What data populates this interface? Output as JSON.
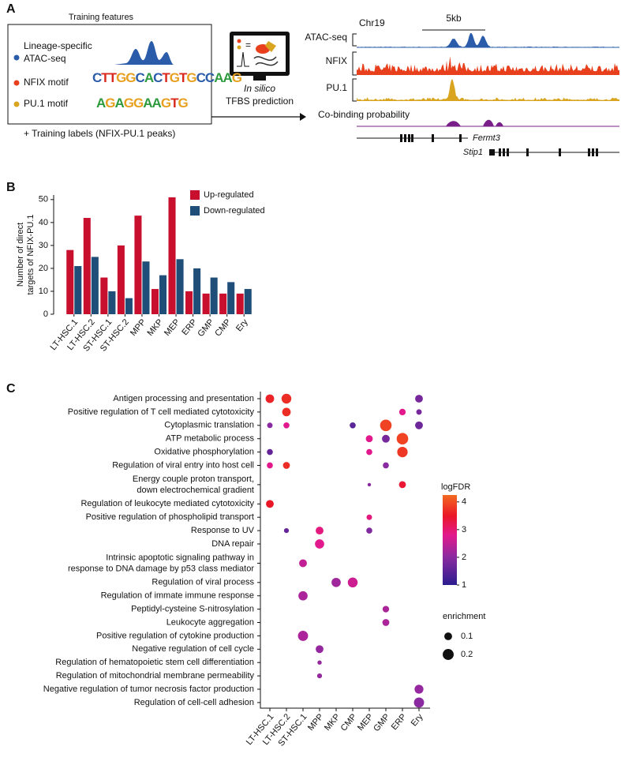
{
  "panel_labels": [
    "A",
    "B",
    "C"
  ],
  "panel_a": {
    "box_title": "Training features",
    "features": [
      {
        "label": [
          "Lineage-specific",
          "ATAC-seq"
        ],
        "color": "#2a5caa"
      },
      {
        "label": [
          "NFIX motif"
        ],
        "color": "#e8401c"
      },
      {
        "label": [
          "PU.1 motif"
        ],
        "color": "#d9a520"
      }
    ],
    "motifs": [
      "CTTGGCACTGTGCCAAG",
      "AGAGGAAGTG"
    ],
    "training_labels": "+ Training labels (NFIX-PU.1 peaks)",
    "prediction": [
      "In silico",
      "TFBS prediction"
    ],
    "chromosome": "Chr19",
    "scale": "5kb",
    "tracks": [
      {
        "name": "ATAC-seq",
        "color": "#2a5caa"
      },
      {
        "name": "NFIX",
        "color": "#e8401c"
      },
      {
        "name": "PU.1",
        "color": "#d9a520"
      }
    ],
    "cobinding": "Co-binding probability",
    "genes": [
      "Fermt3",
      "Stip1"
    ]
  },
  "chart_data": [
    {
      "type": "bar",
      "ylabel": [
        "Number of direct",
        "targets of NFIX-PU.1"
      ],
      "categories": [
        "LT-HSC.1",
        "LT-HSC.2",
        "ST-HSC.1",
        "ST-HSC.2",
        "MPP",
        "MKP",
        "MEP",
        "ERP",
        "GMP",
        "CMP",
        "Ery"
      ],
      "series": [
        {
          "name": "Up-regulated",
          "color": "#c8102e",
          "values": [
            28,
            42,
            16,
            30,
            43,
            11,
            51,
            10,
            9,
            9,
            9
          ]
        },
        {
          "name": "Down-regulated",
          "color": "#1f4e79",
          "values": [
            21,
            25,
            10,
            7,
            23,
            17,
            24,
            20,
            16,
            14,
            11
          ]
        }
      ],
      "ylim": [
        0,
        52
      ],
      "yticks": [
        0,
        10,
        20,
        30,
        40,
        50
      ],
      "legend": "top-right"
    },
    {
      "type": "dot",
      "x_categories": [
        "LT-HSC.1",
        "LT-HSC.2",
        "ST-HSC.1",
        "MPP",
        "MKP",
        "CMP",
        "MEP",
        "GMP",
        "ERP",
        "Ery"
      ],
      "y_categories": [
        "Antigen processing and presentation",
        "Positive regulation of T cell mediated cytotoxicity",
        "Cytoplasmic translation",
        "ATP metabolic process",
        "Oxidative phosphorylation",
        "Regulation of viral entry into host cell",
        [
          "Energy couple proton transport,",
          "down electrochemical gradient"
        ],
        "Regulation of leukocyte mediated cytotoxicity",
        "Positive regulation of phospholipid transport",
        "Response to UV",
        "DNA repair",
        [
          "Intrinsic apoptotic signaling pathway in",
          "response to DNA damage by p53 class mediator"
        ],
        "Regulation of viral process",
        "Regulation of immate immune response",
        "Peptidyl-cysteine S-nitrosylation",
        "Leukocyte aggregation",
        "Positive regulation of cytokine production",
        "Negative regulation of cell cycle",
        "Regulation of hematopoietic stem cell differentiation",
        "Regulation of mitochondrial membrane permeability",
        "Negative regulation of tumor necrosis factor production",
        "Regulation of cell-cell adhesion"
      ],
      "points": [
        {
          "row": 0,
          "col": 0,
          "logFDR": 3.6,
          "enrichment": 0.12
        },
        {
          "row": 0,
          "col": 1,
          "logFDR": 3.7,
          "enrichment": 0.16
        },
        {
          "row": 0,
          "col": 9,
          "logFDR": 1.8,
          "enrichment": 0.1
        },
        {
          "row": 1,
          "col": 1,
          "logFDR": 3.7,
          "enrichment": 0.12
        },
        {
          "row": 1,
          "col": 8,
          "logFDR": 2.8,
          "enrichment": 0.07
        },
        {
          "row": 1,
          "col": 9,
          "logFDR": 1.8,
          "enrichment": 0.05
        },
        {
          "row": 2,
          "col": 0,
          "logFDR": 2.0,
          "enrichment": 0.05
        },
        {
          "row": 2,
          "col": 1,
          "logFDR": 2.8,
          "enrichment": 0.06
        },
        {
          "row": 2,
          "col": 5,
          "logFDR": 1.5,
          "enrichment": 0.06
        },
        {
          "row": 2,
          "col": 7,
          "logFDR": 3.9,
          "enrichment": 0.22
        },
        {
          "row": 2,
          "col": 9,
          "logFDR": 1.7,
          "enrichment": 0.1
        },
        {
          "row": 3,
          "col": 6,
          "logFDR": 2.8,
          "enrichment": 0.08
        },
        {
          "row": 3,
          "col": 7,
          "logFDR": 1.8,
          "enrichment": 0.1
        },
        {
          "row": 3,
          "col": 8,
          "logFDR": 3.9,
          "enrichment": 0.22
        },
        {
          "row": 4,
          "col": 0,
          "logFDR": 1.6,
          "enrichment": 0.06
        },
        {
          "row": 4,
          "col": 6,
          "logFDR": 2.8,
          "enrichment": 0.06
        },
        {
          "row": 4,
          "col": 8,
          "logFDR": 3.8,
          "enrichment": 0.18
        },
        {
          "row": 5,
          "col": 0,
          "logFDR": 2.8,
          "enrichment": 0.06
        },
        {
          "row": 5,
          "col": 1,
          "logFDR": 3.7,
          "enrichment": 0.08
        },
        {
          "row": 5,
          "col": 7,
          "logFDR": 2.0,
          "enrichment": 0.06
        },
        {
          "row": 6,
          "col": 6,
          "logFDR": 2.0,
          "enrichment": 0.02
        },
        {
          "row": 6,
          "col": 8,
          "logFDR": 3.4,
          "enrichment": 0.08
        },
        {
          "row": 7,
          "col": 0,
          "logFDR": 3.5,
          "enrichment": 0.1
        },
        {
          "row": 8,
          "col": 6,
          "logFDR": 2.9,
          "enrichment": 0.05
        },
        {
          "row": 9,
          "col": 1,
          "logFDR": 1.6,
          "enrichment": 0.04
        },
        {
          "row": 9,
          "col": 3,
          "logFDR": 2.9,
          "enrichment": 0.1
        },
        {
          "row": 9,
          "col": 6,
          "logFDR": 1.9,
          "enrichment": 0.06
        },
        {
          "row": 10,
          "col": 3,
          "logFDR": 2.8,
          "enrichment": 0.14
        },
        {
          "row": 11,
          "col": 2,
          "logFDR": 2.5,
          "enrichment": 0.1
        },
        {
          "row": 12,
          "col": 4,
          "logFDR": 2.2,
          "enrichment": 0.14
        },
        {
          "row": 12,
          "col": 5,
          "logFDR": 2.6,
          "enrichment": 0.16
        },
        {
          "row": 13,
          "col": 2,
          "logFDR": 2.3,
          "enrichment": 0.14
        },
        {
          "row": 14,
          "col": 7,
          "logFDR": 2.3,
          "enrichment": 0.07
        },
        {
          "row": 15,
          "col": 7,
          "logFDR": 2.3,
          "enrichment": 0.08
        },
        {
          "row": 16,
          "col": 2,
          "logFDR": 2.3,
          "enrichment": 0.17
        },
        {
          "row": 17,
          "col": 3,
          "logFDR": 2.1,
          "enrichment": 0.1
        },
        {
          "row": 18,
          "col": 3,
          "logFDR": 2.1,
          "enrichment": 0.03
        },
        {
          "row": 19,
          "col": 3,
          "logFDR": 2.1,
          "enrichment": 0.04
        },
        {
          "row": 20,
          "col": 9,
          "logFDR": 2.1,
          "enrichment": 0.13
        },
        {
          "row": 21,
          "col": 9,
          "logFDR": 2.0,
          "enrichment": 0.17
        }
      ],
      "color_title": "logFDR",
      "color_lim": [
        1,
        4.25
      ],
      "color_ticks": [
        1,
        2,
        3,
        4
      ],
      "colorscale": [
        {
          "value": 1,
          "color": "#2b1d8e"
        },
        {
          "value": 2,
          "color": "#8a2aa0"
        },
        {
          "value": 2.8,
          "color": "#e2198c"
        },
        {
          "value": 3.5,
          "color": "#ea1727"
        },
        {
          "value": 4.25,
          "color": "#f36a21"
        }
      ],
      "size_title": "enrichment",
      "size_legend": [
        0.1,
        0.2
      ]
    }
  ]
}
